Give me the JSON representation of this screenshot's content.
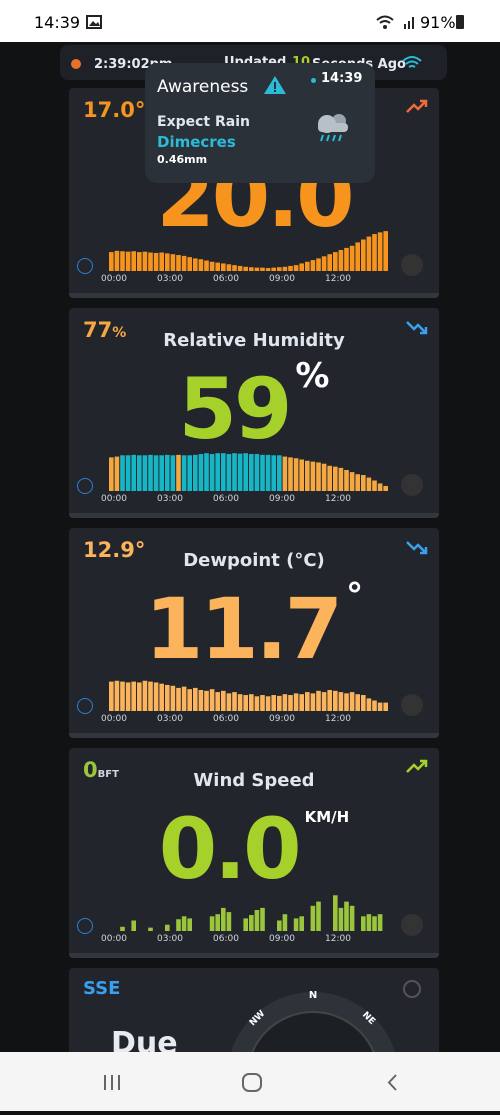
{
  "status_bar": {
    "time": "14:39",
    "battery": "91%"
  },
  "header": {
    "time": "2:39:02pm",
    "updated": "Updated",
    "seconds": "10",
    "ago": "Seconds Ago"
  },
  "popup": {
    "title": "Awareness",
    "time": "14:39",
    "label": "Expect Rain",
    "day": "Dimecres",
    "amount": "0.46mm"
  },
  "x_labels": [
    "00:00",
    "03:00",
    "06:00",
    "09:00",
    "12:00"
  ],
  "cards": [
    {
      "small": "17.0°",
      "value": "20.0",
      "bars": {
        "color": "#f7941d",
        "values": [
          45,
          48,
          47,
          46,
          47,
          45,
          46,
          44,
          43,
          44,
          42,
          40,
          38,
          36,
          33,
          30,
          28,
          25,
          22,
          20,
          18,
          16,
          14,
          12,
          10,
          9,
          8,
          8,
          7,
          8,
          9,
          10,
          12,
          14,
          18,
          22,
          26,
          30,
          35,
          40,
          45,
          50,
          55,
          60,
          68,
          75,
          82,
          88,
          92,
          95
        ]
      }
    },
    {
      "small": "77",
      "small_unit": "%",
      "title": "Relative Humidity",
      "value": "59",
      "unit": "%",
      "bars": {
        "colors": [
          "#f5a742",
          "#f5a742",
          "#17b6c6",
          "#17b6c6",
          "#17b6c6",
          "#17b6c6",
          "#17b6c6",
          "#17b6c6",
          "#17b6c6",
          "#17b6c6",
          "#17b6c6",
          "#17b6c6",
          "#f5a742",
          "#17b6c6",
          "#17b6c6",
          "#17b6c6",
          "#17b6c6",
          "#17b6c6",
          "#17b6c6",
          "#17b6c6",
          "#17b6c6",
          "#17b6c6",
          "#17b6c6",
          "#17b6c6",
          "#17b6c6",
          "#17b6c6",
          "#17b6c6",
          "#17b6c6",
          "#17b6c6",
          "#17b6c6",
          "#17b6c6",
          "#f5a742",
          "#f5a742",
          "#f5a742",
          "#f5a742",
          "#f5a742",
          "#f5a742",
          "#f5a742",
          "#f5a742",
          "#f5a742",
          "#f5a742",
          "#f5a742",
          "#f5a742",
          "#f5a742",
          "#f5a742",
          "#f5a742",
          "#f5a742",
          "#f5a742",
          "#f5a742",
          "#f5a742"
        ],
        "values": [
          80,
          82,
          85,
          85,
          86,
          85,
          85,
          86,
          85,
          85,
          86,
          85,
          86,
          85,
          85,
          86,
          88,
          90,
          88,
          90,
          90,
          88,
          90,
          89,
          90,
          88,
          88,
          86,
          86,
          85,
          85,
          82,
          80,
          78,
          75,
          72,
          70,
          68,
          65,
          60,
          58,
          55,
          50,
          45,
          40,
          38,
          32,
          25,
          18,
          12
        ]
      }
    },
    {
      "small": "12.9°",
      "title": "Dewpoint (°C)",
      "value": "11.7",
      "unit": "°",
      "bars": {
        "color": "#fbb45c",
        "values": [
          70,
          72,
          70,
          68,
          70,
          68,
          72,
          70,
          68,
          65,
          62,
          60,
          55,
          58,
          52,
          55,
          50,
          48,
          52,
          45,
          48,
          42,
          45,
          40,
          38,
          40,
          35,
          38,
          35,
          38,
          36,
          40,
          38,
          42,
          40,
          45,
          42,
          48,
          45,
          50,
          48,
          45,
          42,
          45,
          40,
          38,
          30,
          25,
          20,
          20
        ]
      }
    },
    {
      "small": "0",
      "small_unit": "BFT",
      "title": "Wind Speed",
      "value": "0.0",
      "unit": "KM/H",
      "bars": {
        "color": "#9bc53d",
        "values": [
          0,
          0,
          10,
          0,
          25,
          0,
          0,
          8,
          0,
          0,
          15,
          0,
          28,
          35,
          30,
          0,
          0,
          0,
          35,
          40,
          55,
          45,
          0,
          0,
          30,
          38,
          50,
          55,
          0,
          0,
          25,
          40,
          0,
          30,
          35,
          0,
          60,
          70,
          0,
          0,
          85,
          55,
          70,
          60,
          0,
          35,
          40,
          35,
          40,
          0
        ]
      }
    }
  ],
  "direction": {
    "label": "SSE",
    "text": "Due",
    "compass": [
      "N",
      "NW",
      "NE"
    ]
  }
}
